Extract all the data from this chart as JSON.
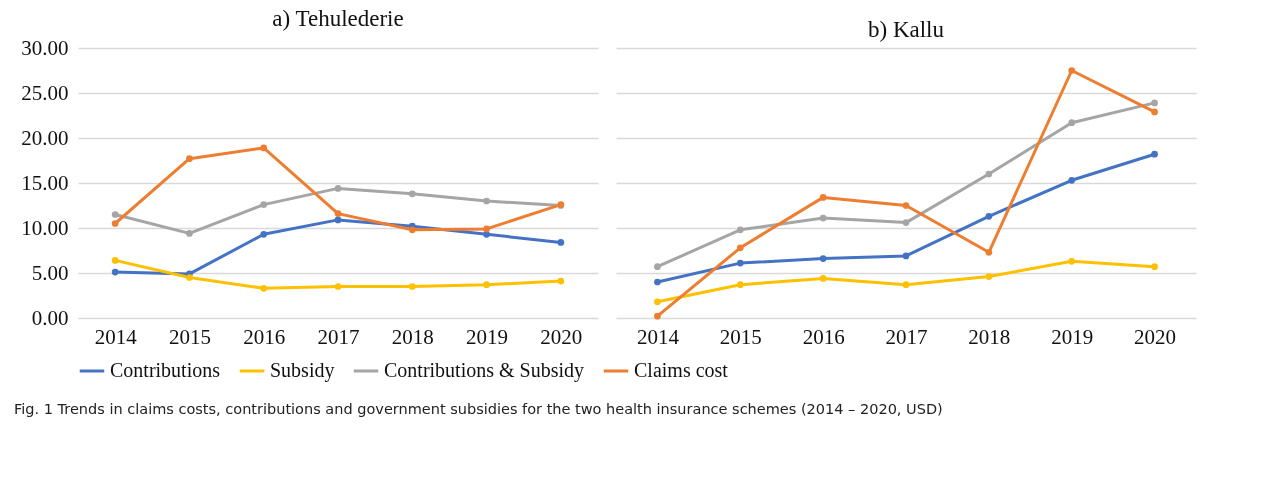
{
  "chart_data": [
    {
      "type": "line",
      "title": "a) Tehulederie",
      "categories": [
        "2014",
        "2015",
        "2016",
        "2017",
        "2018",
        "2019",
        "2020"
      ],
      "series": [
        {
          "name": "Contributions",
          "color": "#4472c4",
          "values": [
            5.1,
            4.9,
            9.3,
            10.9,
            10.2,
            9.3,
            8.4
          ]
        },
        {
          "name": "Subsidy",
          "color": "#ffc000",
          "values": [
            6.4,
            4.5,
            3.3,
            3.5,
            3.5,
            3.7,
            4.1
          ]
        },
        {
          "name": "Contributions & Subsidy",
          "color": "#a5a5a5",
          "values": [
            11.5,
            9.4,
            12.6,
            14.4,
            13.8,
            13.0,
            12.5
          ]
        },
        {
          "name": "Claims cost",
          "color": "#ed7d31",
          "values": [
            10.5,
            17.7,
            18.9,
            11.6,
            9.8,
            9.9,
            12.6
          ]
        }
      ],
      "ylim": [
        0,
        30
      ],
      "yticks": [
        {
          "value": 0,
          "label": "0.00"
        },
        {
          "value": 5,
          "label": "5.00"
        },
        {
          "value": 10,
          "label": "10.00"
        },
        {
          "value": 15,
          "label": "15.00"
        },
        {
          "value": 20,
          "label": "20.00"
        },
        {
          "value": 25,
          "label": "25.00"
        },
        {
          "value": 30,
          "label": "30.00"
        }
      ],
      "grid": "y",
      "marker": "circle",
      "legend": "bottom",
      "annotations": [
        "Fig. 1 Trends in claims costs, contributions and government subsidies for the two health insurance schemes (2014 – 2020, USD)"
      ]
    },
    {
      "type": "line",
      "title": "b) Kallu",
      "categories": [
        "2014",
        "2015",
        "2016",
        "2017",
        "2018",
        "2019",
        "2020"
      ],
      "series": [
        {
          "name": "Contributions",
          "color": "#4472c4",
          "values": [
            4.0,
            6.1,
            6.6,
            6.9,
            11.3,
            15.3,
            18.2
          ]
        },
        {
          "name": "Subsidy",
          "color": "#ffc000",
          "values": [
            1.8,
            3.7,
            4.4,
            3.7,
            4.6,
            6.3,
            5.7
          ]
        },
        {
          "name": "Contributions & Subsidy",
          "color": "#a5a5a5",
          "values": [
            5.7,
            9.8,
            11.1,
            10.6,
            16.0,
            21.7,
            23.9
          ]
        },
        {
          "name": "Claims cost",
          "color": "#ed7d31",
          "values": [
            0.2,
            7.8,
            13.4,
            12.5,
            7.3,
            27.5,
            22.9
          ]
        }
      ],
      "ylim": [
        0,
        30
      ],
      "yticks": [
        0,
        5,
        10,
        15,
        20,
        25,
        30
      ],
      "grid": "y",
      "marker": "circle",
      "legend": "bottom",
      "tick_labels": "x"
    }
  ]
}
